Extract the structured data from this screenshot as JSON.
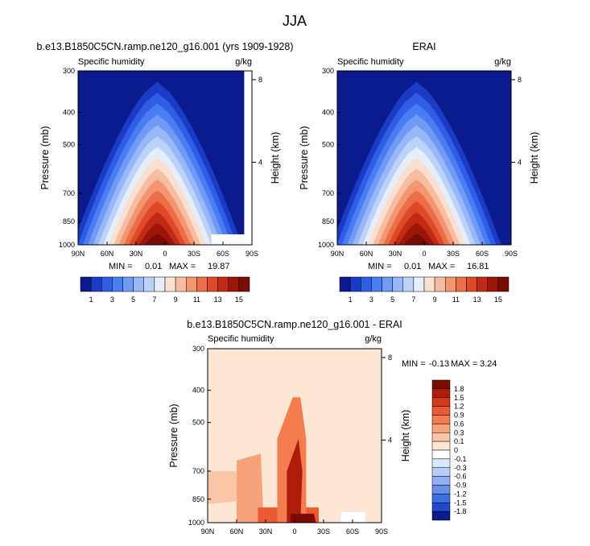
{
  "figure": {
    "title": "JJA"
  },
  "chart_data": [
    {
      "type": "heatmap",
      "title": "b.e13.B1850C5CN.ramp.ne120_g16.001 (yrs 1909-1928)",
      "variable": "Specific humidity",
      "units": "g/kg",
      "xlabel": "",
      "ylabel": "Pressure (mb)",
      "y2label": "Height (km)",
      "x_ticks": [
        "90N",
        "60N",
        "30N",
        "0",
        "30S",
        "60S",
        "90S"
      ],
      "y_ticks": [
        300,
        400,
        500,
        700,
        850,
        1000
      ],
      "y2_ticks": [
        8,
        4
      ],
      "xlim": [
        90,
        -90
      ],
      "ylim": [
        1000,
        300
      ],
      "min": "0.01",
      "max": "19.87",
      "min_label": "MIN =",
      "max_label": "MAX =",
      "colorbar": {
        "levels": [
          "1",
          "3",
          "5",
          "7",
          "9",
          "11",
          "13",
          "15"
        ],
        "colors": [
          "#0b1a8c",
          "#1a3bc6",
          "#2e5ee6",
          "#4a7df2",
          "#6f9bf5",
          "#96b7f8",
          "#bcd2fa",
          "#e6eefb",
          "#fbe0cf",
          "#f7bda0",
          "#f29672",
          "#ec6e48",
          "#de4a28",
          "#c22a13",
          "#9b1608",
          "#7a0c03"
        ]
      },
      "peak": {
        "lat": 8,
        "value": 19.87
      }
    },
    {
      "type": "heatmap",
      "title": "ERAI",
      "variable": "Specific humidity",
      "units": "g/kg",
      "xlabel": "",
      "ylabel": "Pressure (mb)",
      "y2label": "Height (km)",
      "x_ticks": [
        "90N",
        "60N",
        "30N",
        "0",
        "30S",
        "60S",
        "90S"
      ],
      "y_ticks": [
        300,
        400,
        500,
        700,
        850,
        1000
      ],
      "y2_ticks": [
        8,
        4
      ],
      "xlim": [
        90,
        -90
      ],
      "ylim": [
        1000,
        300
      ],
      "min": "0.01",
      "max": "16.81",
      "min_label": "MIN =",
      "max_label": "MAX =",
      "colorbar": {
        "levels": [
          "1",
          "3",
          "5",
          "7",
          "9",
          "11",
          "13",
          "15"
        ],
        "colors": [
          "#0b1a8c",
          "#1a3bc6",
          "#2e5ee6",
          "#4a7df2",
          "#6f9bf5",
          "#96b7f8",
          "#bcd2fa",
          "#e6eefb",
          "#fbe0cf",
          "#f7bda0",
          "#f29672",
          "#ec6e48",
          "#de4a28",
          "#c22a13",
          "#9b1608",
          "#7a0c03"
        ]
      },
      "peak": {
        "lat": 8,
        "value": 16.81
      }
    },
    {
      "type": "heatmap",
      "title": "b.e13.B1850C5CN.ramp.ne120_g16.001 - ERAI",
      "variable": "Specific humidity",
      "units": "g/kg",
      "xlabel": "",
      "ylabel": "Pressure (mb)",
      "y2label": "Height (km)",
      "x_ticks": [
        "90N",
        "60N",
        "30N",
        "0",
        "30S",
        "60S",
        "90S"
      ],
      "y_ticks": [
        300,
        400,
        500,
        700,
        850,
        1000
      ],
      "y2_ticks": [
        8,
        4
      ],
      "xlim": [
        90,
        -90
      ],
      "ylim": [
        1000,
        300
      ],
      "min": "-0.13",
      "max": "3.24",
      "min_label": "MIN =",
      "max_label": "MAX =",
      "colorbar": {
        "levels": [
          "1.8",
          "1.5",
          "1.2",
          "0.9",
          "0.6",
          "0.3",
          "0.1",
          "0",
          "-0.1",
          "-0.3",
          "-0.6",
          "-0.9",
          "-1.2",
          "-1.5",
          "-1.8"
        ],
        "colors": [
          "#7a0c03",
          "#b01c0a",
          "#d63a1c",
          "#ec5a33",
          "#f47d50",
          "#f8a27b",
          "#fbc6a6",
          "#fde6d4",
          "#ffffff",
          "#dbe7fb",
          "#b7cdf7",
          "#8fb0f2",
          "#6690ec",
          "#3d6fe3",
          "#2149cc",
          "#0b1a8c"
        ]
      }
    }
  ]
}
